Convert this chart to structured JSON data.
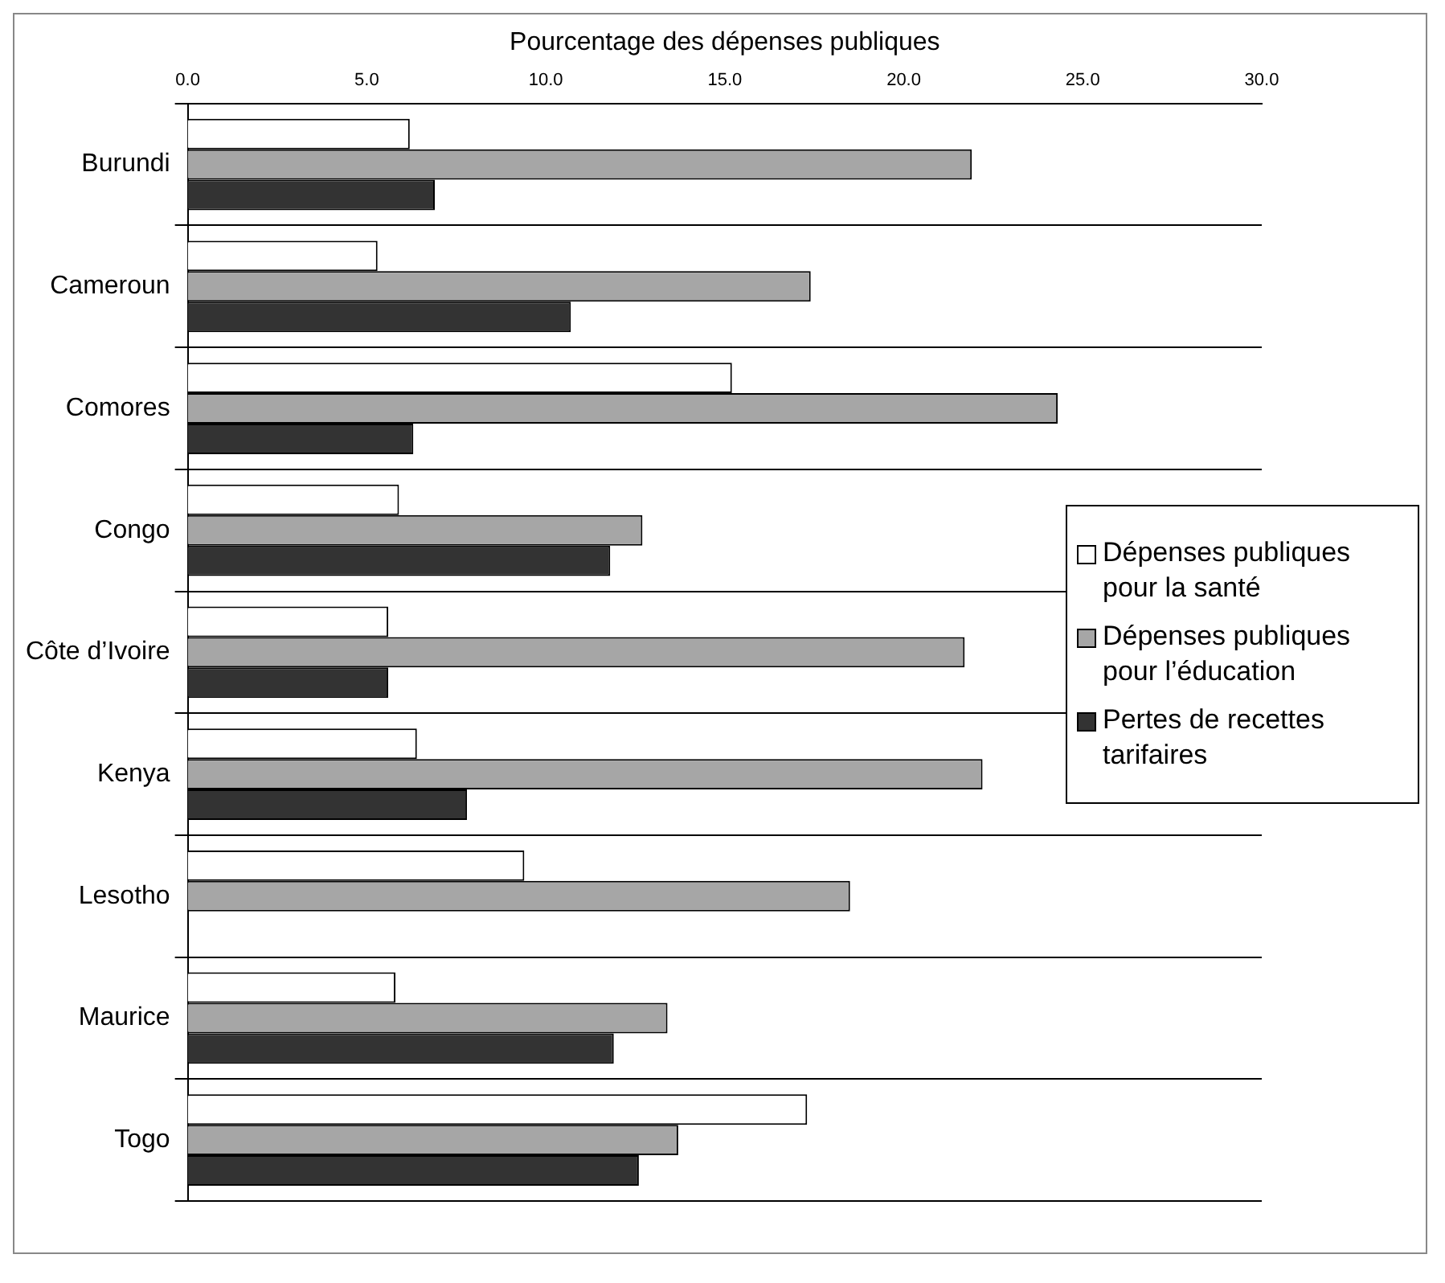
{
  "chart_data": {
    "type": "bar",
    "orientation": "horizontal",
    "xlabel": "Pourcentage des dépenses publiques",
    "categories": [
      "Burundi",
      "Cameroun",
      "Comores",
      "Congo",
      "Côte d’Ivoire",
      "Kenya",
      "Lesotho",
      "Maurice",
      "Togo"
    ],
    "series": [
      {
        "name": "Dépenses publiques pour la santé",
        "color": "#ffffff",
        "values": [
          6.2,
          5.3,
          15.2,
          5.9,
          5.6,
          6.4,
          9.4,
          5.8,
          17.3
        ]
      },
      {
        "name": "Dépenses publiques pour l’éducation",
        "color": "#a6a6a6",
        "values": [
          21.9,
          17.4,
          24.3,
          12.7,
          21.7,
          22.2,
          18.5,
          13.4,
          13.7
        ]
      },
      {
        "name": "Pertes de recettes tarifaires",
        "color": "#333333",
        "values": [
          6.9,
          10.7,
          6.3,
          11.8,
          5.6,
          7.8,
          null,
          11.9,
          12.6
        ]
      }
    ],
    "xlim": [
      0,
      30
    ],
    "xticks": [
      {
        "value": 0,
        "label": "0.0"
      },
      {
        "value": 5,
        "label": "5.0"
      },
      {
        "value": 10,
        "label": "10.0"
      },
      {
        "value": 15,
        "label": "15.0"
      },
      {
        "value": 20,
        "label": "20.0"
      },
      {
        "value": 25,
        "label": "25.0"
      },
      {
        "value": 30,
        "label": "30.0"
      }
    ],
    "grid": "y",
    "legend": "right"
  }
}
